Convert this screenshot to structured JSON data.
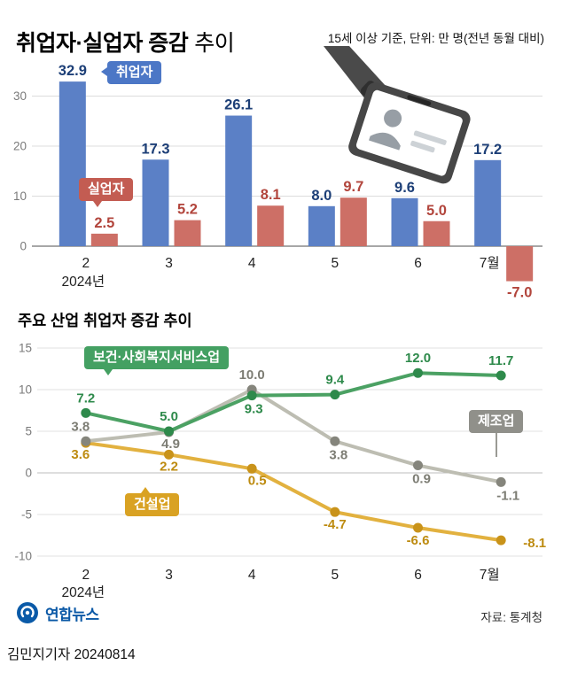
{
  "header": {
    "title": "취업자·실업자 증감",
    "title_suffix": "추이",
    "subtitle": "15세 이상 기준, 단위: 만 명(전년 동월 대비)"
  },
  "chart_data": [
    {
      "type": "bar",
      "title": "취업자·실업자 증감 추이",
      "unit_note": "15세 이상 기준, 단위: 만 명(전년 동월 대비)",
      "categories": [
        "2",
        "3",
        "4",
        "5",
        "6",
        "7월"
      ],
      "x_axis_year": "2024년",
      "yticks": [
        0,
        10,
        20,
        30
      ],
      "ylim": [
        -10,
        35
      ],
      "grid": true,
      "series": [
        {
          "name": "취업자",
          "color": "#5b80c6",
          "label_color": "#1d3f77",
          "values": [
            32.9,
            17.3,
            26.1,
            8.0,
            9.6,
            17.2
          ]
        },
        {
          "name": "실업자",
          "color": "#cd6f66",
          "label_color": "#b2453c",
          "values": [
            2.5,
            5.2,
            8.1,
            9.7,
            5.0,
            -7.0
          ]
        }
      ]
    },
    {
      "type": "line",
      "title": "주요 산업 취업자 증감 추이",
      "categories": [
        "2",
        "3",
        "4",
        "5",
        "6",
        "7월"
      ],
      "x_axis_year": "2024년",
      "yticks": [
        -10,
        -5,
        0,
        5,
        10,
        15
      ],
      "ylim": [
        -10,
        15
      ],
      "grid": true,
      "series": [
        {
          "name": "보건·사회복지서비스업",
          "color": "#4ba163",
          "marker_color": "#2e8a4b",
          "label_color": "#2e8a4b",
          "values": [
            7.2,
            5.0,
            9.3,
            9.4,
            12.0,
            11.7
          ]
        },
        {
          "name": "제조업",
          "color": "#bdbdb2",
          "marker_color": "#85857c",
          "label_color": "#7d7d74",
          "values": [
            3.8,
            4.9,
            10.0,
            3.8,
            0.9,
            -1.1
          ]
        },
        {
          "name": "건설업",
          "color": "#e2b13f",
          "marker_color": "#c9931a",
          "label_color": "#bd8b10",
          "values": [
            3.6,
            2.2,
            0.5,
            -4.7,
            -6.6,
            -8.1
          ]
        }
      ]
    }
  ],
  "footer": {
    "logo_text": "연합뉴스",
    "source": "자료: 통계청",
    "credit": "김민지기자 20240814"
  }
}
